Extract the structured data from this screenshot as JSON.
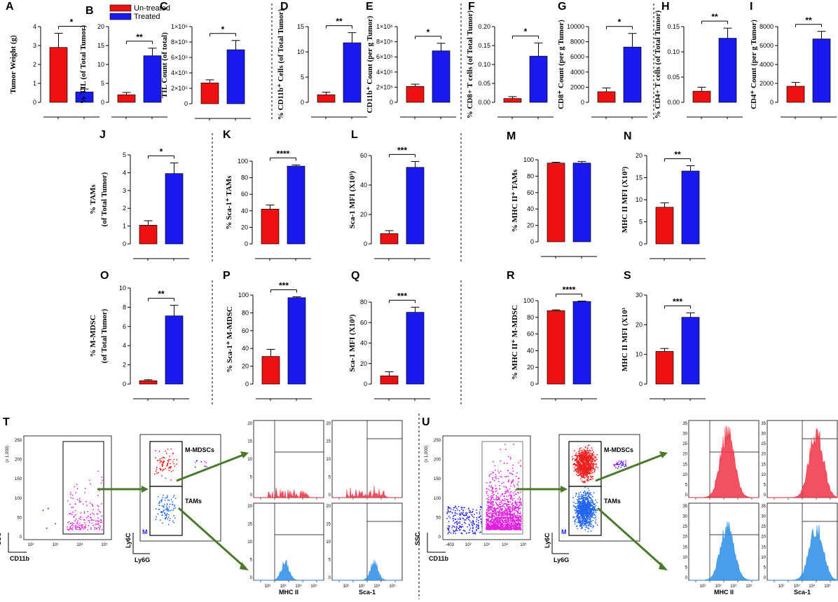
{
  "legend": {
    "untreated": "Un-treated",
    "treated": "Treated",
    "untreated_color": "#ee1111",
    "treated_color": "#1a1aee"
  },
  "chart_data": [
    {
      "type": "bar",
      "panel": "A",
      "ylabel": "Tumor Weight (g)",
      "ylim": [
        0,
        4
      ],
      "ticks": [
        "0",
        "1",
        "2",
        "3",
        "4"
      ],
      "categories": [
        "Un-treated",
        "Treated"
      ],
      "values": [
        2.9,
        0.55
      ],
      "errors": [
        0.75,
        0.15
      ],
      "sig": "*"
    },
    {
      "type": "bar",
      "panel": "B",
      "ylabel": "% TIL (of Total Tumor)",
      "ylim": [
        0,
        20
      ],
      "ticks": [
        "0",
        "5",
        "10",
        "15",
        "20"
      ],
      "categories": [
        "Un-treated",
        "Treated"
      ],
      "values": [
        2.0,
        12.3
      ],
      "errors": [
        0.6,
        2.0
      ],
      "sig": "**"
    },
    {
      "type": "bar",
      "panel": "C",
      "ylabel": "TIL Count (of total)",
      "ylim": [
        0,
        1000000
      ],
      "ticks": [
        "0",
        "2×10⁵",
        "4×10⁵",
        "6×10⁵",
        "8×10⁵",
        "1×10⁶"
      ],
      "categories": [
        "Un-treated",
        "Treated"
      ],
      "values": [
        270000,
        700000
      ],
      "errors": [
        40000,
        120000
      ],
      "sig": "*"
    },
    {
      "type": "bar",
      "panel": "D",
      "ylabel": "% CD11b⁺ Cells (of Total Tumor)",
      "ylim": [
        0,
        15
      ],
      "ticks": [
        "0",
        "5",
        "10",
        "15"
      ],
      "categories": [
        "Un-treated",
        "Treated"
      ],
      "values": [
        1.5,
        11.8
      ],
      "errors": [
        0.5,
        2.0
      ],
      "sig": "**"
    },
    {
      "type": "bar",
      "panel": "E",
      "ylabel": "CD11b⁺ Count (per g Tumor)",
      "ylim": [
        0,
        1000000
      ],
      "ticks": [
        "0",
        "2×10⁵",
        "4×10⁵",
        "6×10⁵",
        "8×10⁵",
        "1×10⁶"
      ],
      "categories": [
        "Un-treated",
        "Treated"
      ],
      "values": [
        210000,
        680000
      ],
      "errors": [
        30000,
        100000
      ],
      "sig": "*"
    },
    {
      "type": "bar",
      "panel": "F",
      "ylabel": "% CD8+ T cells (of Total Tumor)",
      "ylim": [
        0,
        0.2
      ],
      "ticks": [
        "0.00",
        "0.05",
        "0.10",
        "0.15",
        "0.20"
      ],
      "categories": [
        "Un-treated",
        "Treated"
      ],
      "values": [
        0.01,
        0.122
      ],
      "errors": [
        0.005,
        0.035
      ],
      "sig": "*"
    },
    {
      "type": "bar",
      "panel": "G",
      "ylabel": "CD8⁺ Count (per g Tumor)",
      "ylim": [
        0,
        10000
      ],
      "ticks": [
        "0",
        "2000",
        "4000",
        "6000",
        "8000",
        "10000"
      ],
      "categories": [
        "Un-treated",
        "Treated"
      ],
      "values": [
        1400,
        7300
      ],
      "errors": [
        500,
        1800
      ],
      "sig": "*"
    },
    {
      "type": "bar",
      "panel": "H",
      "ylabel": "% CD4+ T cells (of Total Tumor)",
      "ylim": [
        0,
        0.15
      ],
      "ticks": [
        "0.00",
        "0.05",
        "0.10",
        "0.15"
      ],
      "categories": [
        "Un-treated",
        "Treated"
      ],
      "values": [
        0.022,
        0.127
      ],
      "errors": [
        0.008,
        0.02
      ],
      "sig": "**"
    },
    {
      "type": "bar",
      "panel": "I",
      "ylabel": "CD4⁺ Count (per g Tumor)",
      "ylim": [
        0,
        8000
      ],
      "ticks": [
        "0",
        "2000",
        "4000",
        "6000",
        "8000"
      ],
      "categories": [
        "Un-treated",
        "Treated"
      ],
      "values": [
        1700,
        6700
      ],
      "errors": [
        400,
        800
      ],
      "sig": "**"
    },
    {
      "type": "bar",
      "panel": "J",
      "ylabel": "% TAMs",
      "ylabel2": "(of Total Tumor)",
      "ylim": [
        0,
        5
      ],
      "ticks": [
        "0",
        "1",
        "2",
        "3",
        "4",
        "5"
      ],
      "categories": [
        "Un-treated",
        "Treated"
      ],
      "values": [
        1.05,
        3.95
      ],
      "errors": [
        0.25,
        0.6
      ],
      "sig": "*"
    },
    {
      "type": "bar",
      "panel": "K",
      "ylabel": "% Sca-1⁺ TAMs",
      "ylim": [
        0,
        100
      ],
      "ticks": [
        "0",
        "20",
        "40",
        "60",
        "80",
        "100"
      ],
      "categories": [
        "Un-treated",
        "Treated"
      ],
      "values": [
        42,
        94
      ],
      "errors": [
        5,
        1.5
      ],
      "sig": "****"
    },
    {
      "type": "bar",
      "panel": "L",
      "ylabel": "Sca-1 MFI (X10³)",
      "ylim": [
        0,
        60
      ],
      "ticks": [
        "0",
        "20",
        "40",
        "60"
      ],
      "categories": [
        "Un-treated",
        "Treated"
      ],
      "values": [
        7,
        52
      ],
      "errors": [
        2,
        4
      ],
      "sig": "***"
    },
    {
      "type": "bar",
      "panel": "M",
      "ylabel": "% MHC II⁺ TAMs",
      "ylim": [
        0,
        100
      ],
      "ticks": [
        "0",
        "20",
        "40",
        "60",
        "80",
        "100"
      ],
      "categories": [
        "Un-treated",
        "Treated"
      ],
      "values": [
        96,
        96
      ],
      "errors": [
        1,
        2
      ],
      "sig": ""
    },
    {
      "type": "bar",
      "panel": "N",
      "ylabel": "MHC II MFI (X10³)",
      "ylim": [
        0,
        20
      ],
      "ticks": [
        "0",
        "5",
        "10",
        "15",
        "20"
      ],
      "categories": [
        "Un-treated",
        "Treated"
      ],
      "values": [
        8.3,
        16.5
      ],
      "errors": [
        1.0,
        1.2
      ],
      "sig": "**"
    },
    {
      "type": "bar",
      "panel": "O",
      "ylabel": "% M-MDSC",
      "ylabel2": "(of Total Tumor)",
      "ylim": [
        0,
        10
      ],
      "ticks": [
        "0",
        "2",
        "4",
        "6",
        "8",
        "10"
      ],
      "categories": [
        "Un-treated",
        "Treated"
      ],
      "values": [
        0.35,
        7.1
      ],
      "errors": [
        0.1,
        1.1
      ],
      "sig": "**"
    },
    {
      "type": "bar",
      "panel": "P",
      "ylabel": "% Sca-1⁺ M-MDSC",
      "ylim": [
        0,
        100
      ],
      "ticks": [
        "0",
        "20",
        "40",
        "60",
        "80",
        "100"
      ],
      "categories": [
        "Un-treated",
        "Treated"
      ],
      "values": [
        31,
        97
      ],
      "errors": [
        8,
        1
      ],
      "sig": "***"
    },
    {
      "type": "bar",
      "panel": "Q",
      "ylabel": "Sca-1 MFI (X10³)",
      "ylim": [
        0,
        80
      ],
      "ticks": [
        "0",
        "20",
        "40",
        "60",
        "80"
      ],
      "categories": [
        "Un-treated",
        "Treated"
      ],
      "values": [
        8,
        70
      ],
      "errors": [
        4,
        5
      ],
      "sig": "***"
    },
    {
      "type": "bar",
      "panel": "R",
      "ylabel": "% MHC II⁺ M-MDSC",
      "ylim": [
        0,
        100
      ],
      "ticks": [
        "0",
        "20",
        "40",
        "60",
        "80",
        "100"
      ],
      "categories": [
        "Un-treated",
        "Treated"
      ],
      "values": [
        88,
        99
      ],
      "errors": [
        1,
        0.5
      ],
      "sig": "****"
    },
    {
      "type": "bar",
      "panel": "S",
      "ylabel": "MHC II MFI (X10³",
      "ylim": [
        0,
        30
      ],
      "ticks": [
        "0",
        "10",
        "20",
        "30"
      ],
      "categories": [
        "Un-treated",
        "Treated"
      ],
      "values": [
        11,
        22.5
      ],
      "errors": [
        1,
        1.5
      ],
      "sig": "***"
    }
  ],
  "flow": {
    "T": {
      "letter": "T",
      "ssc": "SSC",
      "ssc_scale": "(x 1,000)",
      "cd11b": "CD11b",
      "ly6c": "Ly6C",
      "ly6g": "Ly6G",
      "mmdsc": "M-MDSCs",
      "tams": "TAMs",
      "mhc": "MHC II",
      "sca": "Sca-1",
      "gate": "M",
      "scatter_ticks": [
        "250",
        "200",
        "150",
        "100",
        "50",
        "0"
      ],
      "x_ticks": [
        "10²",
        "10³",
        "10⁴",
        "10⁵"
      ],
      "hist_ticks": [
        "20",
        "15",
        "10",
        "5",
        "0"
      ]
    },
    "U": {
      "letter": "U",
      "ssc": "SSC",
      "ssc_scale": "(x 1,000)",
      "cd11b": "CD11b",
      "ly6c": "Ly6C",
      "ly6g": "Ly6G",
      "mmdsc": "M-MDSCs",
      "tams": "TAMs",
      "mhc": "MHC II",
      "sca": "Sca-1",
      "gate": "M",
      "scatter_ticks": [
        "250",
        "200",
        "150",
        "100",
        "50",
        "0"
      ],
      "x_ticks": [
        "-403",
        "10²",
        "10³",
        "10⁴",
        "10⁵"
      ],
      "hist_ticks": [
        "35",
        "30",
        "25",
        "20",
        "15",
        "10",
        "5",
        "0"
      ]
    }
  }
}
